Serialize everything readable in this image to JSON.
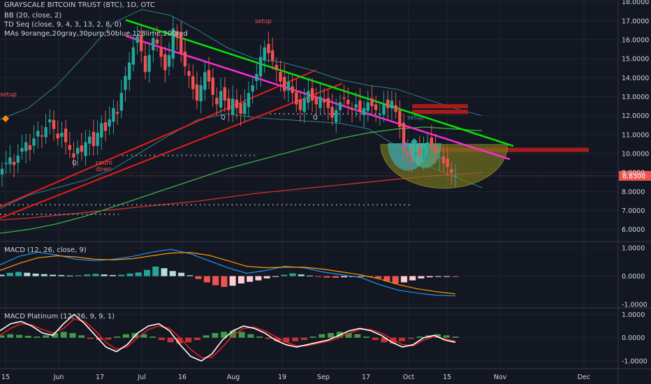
{
  "header": {
    "title": "GRAYSCALE BITCOIN TRUST (BTC), 1D, OTC",
    "indicators": [
      "BB (20, close, 2)",
      "TD Seq (close, 9, 4, 3, 13, 2, 8, 0)",
      "MAs 9orange,20gray,30purp,50blue,128lime,200red"
    ],
    "macd_title": "MACD (12, 26, close, 9)",
    "macd_platinum_title": "MACD Platinum (12, 26, 9, 9, 1)"
  },
  "chart_data": [
    {
      "type": "candlestick",
      "panel": "price",
      "y_ticks": [
        "6.0000",
        "7.0000",
        "8.0000",
        "9.0000",
        "10.0000",
        "11.0000",
        "12.0000",
        "13.0000",
        "14.0000",
        "15.0000",
        "16.0000",
        "17.0000",
        "18.0000"
      ],
      "ylim": [
        5.4,
        18.1
      ],
      "last_price_label": "8.8300",
      "x_ticks": [
        "15",
        "Jun",
        "17",
        "Jul",
        "16",
        "Aug",
        "19",
        "Sep",
        "17",
        "Oct",
        "15",
        "Nov",
        "Dec"
      ],
      "annotations": [
        "setup",
        "setup",
        "setup",
        "count down",
        "Q",
        "Q",
        "Q"
      ],
      "series": [
        {
          "name": "Close",
          "values": [
            9.2,
            9.5,
            9.8,
            9.4,
            9.9,
            10.3,
            10.6,
            10.2,
            10.8,
            11.2,
            10.9,
            11.4,
            11.8,
            11.3,
            10.8,
            11.1,
            10.6,
            10.2,
            9.8,
            10.3,
            10.1,
            10.6,
            10.9,
            10.4,
            11.1,
            11.6,
            11.2,
            11.8,
            12.4,
            12.1,
            13.2,
            14.1,
            14.8,
            15.6,
            16.2,
            15.4,
            14.3,
            15.2,
            16.1,
            15.8,
            15.1,
            14.4,
            15.2,
            16.6,
            16.1,
            15.3,
            14.6,
            14.1,
            13.4,
            12.8,
            13.6,
            14.3,
            13.8,
            13.1,
            12.6,
            13.3,
            12.8,
            12.3,
            12.9,
            12.4,
            12.1,
            12.7,
            13.2,
            13.6,
            14.2,
            15.1,
            15.6,
            15.3,
            14.9,
            14.4,
            13.8,
            13.3,
            13.8,
            13.2,
            12.6,
            12.3,
            12.9,
            13.3,
            12.8,
            12.6,
            13.0,
            12.7,
            12.4,
            11.9,
            12.3,
            12.7,
            12.9,
            12.6,
            12.3,
            12.6,
            12.2,
            12.4,
            12.7,
            12.5,
            12.3,
            12.1,
            12.6,
            12.4,
            12.8,
            12.2,
            11.4,
            10.2,
            9.9,
            9.6,
            10.1,
            9.9,
            10.3,
            10.6,
            10.4,
            10.0,
            9.8,
            9.5,
            9.3,
            9.0,
            8.83
          ]
        },
        {
          "name": "BB upper",
          "values": [
            11.8,
            12.4,
            13.6,
            15.2,
            16.9,
            17.6,
            17.3,
            16.5,
            15.6,
            15.0,
            14.8,
            14.4,
            13.9,
            13.6,
            13.4,
            12.9,
            12.4,
            12.0
          ]
        },
        {
          "name": "BB lower",
          "values": [
            7.1,
            7.8,
            8.2,
            8.6,
            9.2,
            10.1,
            11.0,
            11.8,
            12.1,
            11.9,
            11.8,
            11.7,
            11.6,
            11.3,
            10.4,
            9.4,
            8.8,
            8.2
          ]
        },
        {
          "name": "MA 200",
          "values": [
            6.5,
            6.6,
            6.75,
            6.9,
            7.05,
            7.2,
            7.35,
            7.5,
            7.7,
            7.9,
            8.05,
            8.2,
            8.35,
            8.5,
            8.65,
            8.8,
            8.9,
            9.0
          ]
        },
        {
          "name": "MA 128",
          "values": [
            5.8,
            6.0,
            6.3,
            6.7,
            7.2,
            7.7,
            8.2,
            8.7,
            9.2,
            9.6,
            10.0,
            10.4,
            10.8,
            11.1,
            11.3,
            11.4,
            11.3,
            11.2
          ]
        }
      ],
      "trendlines": [
        {
          "name": "green",
          "from": [
            "Jun 25",
            17.0
          ],
          "to": [
            "Nov 3",
            10.4
          ],
          "color": "#00e600"
        },
        {
          "name": "magenta",
          "from": [
            "Jun 25",
            16.2
          ],
          "to": [
            "Oct 28",
            9.7
          ],
          "color": "#ff2bd6"
        }
      ],
      "horizontal_zones": [
        12.5,
        12.2,
        10.2
      ],
      "dotted_levels": [
        7.3,
        6.8,
        9.9,
        12.1
      ]
    },
    {
      "type": "histogram",
      "panel": "macd",
      "y_ticks": [
        "1.0000",
        "0.0000",
        "-1.0000"
      ],
      "ylim": [
        -1.1,
        1.2
      ],
      "series": [
        {
          "name": "Histogram",
          "values": [
            0.05,
            0.12,
            0.15,
            0.12,
            0.09,
            0.07,
            0.05,
            0.04,
            0.02,
            0.03,
            0.06,
            0.08,
            0.06,
            0.04,
            0.05,
            0.09,
            0.13,
            0.22,
            0.34,
            0.28,
            0.18,
            0.12,
            0.03,
            -0.1,
            -0.22,
            -0.32,
            -0.38,
            -0.34,
            -0.26,
            -0.2,
            -0.15,
            -0.08,
            -0.02,
            0.05,
            0.1,
            0.06,
            0.02,
            -0.02,
            -0.05,
            -0.06,
            -0.04,
            -0.03,
            -0.02,
            -0.03,
            -0.08,
            -0.18,
            -0.26,
            -0.22,
            -0.15,
            -0.08,
            -0.04,
            -0.02,
            -0.01,
            -0.02
          ]
        },
        {
          "name": "MACD",
          "values": [
            0.4,
            0.7,
            0.85,
            0.75,
            0.6,
            0.55,
            0.6,
            0.7,
            0.85,
            0.95,
            0.8,
            0.55,
            0.3,
            0.1,
            0.2,
            0.35,
            0.3,
            0.15,
            0.05,
            -0.05,
            -0.3,
            -0.5,
            -0.6,
            -0.68,
            -0.7
          ]
        },
        {
          "name": "Signal",
          "values": [
            0.2,
            0.45,
            0.65,
            0.72,
            0.68,
            0.6,
            0.58,
            0.62,
            0.72,
            0.82,
            0.84,
            0.74,
            0.55,
            0.35,
            0.3,
            0.32,
            0.32,
            0.25,
            0.15,
            0.05,
            -0.1,
            -0.3,
            -0.45,
            -0.55,
            -0.63
          ]
        }
      ]
    },
    {
      "type": "histogram",
      "panel": "macd_platinum",
      "y_ticks": [
        "1.0000",
        "0.0000",
        "-1.0000"
      ],
      "ylim": [
        -1.3,
        1.25
      ],
      "series": [
        {
          "name": "Histogram",
          "values": [
            0.1,
            0.15,
            0.12,
            0.08,
            0.05,
            0.1,
            0.2,
            0.25,
            0.2,
            0.1,
            -0.05,
            -0.1,
            -0.08,
            0.05,
            0.15,
            0.2,
            0.15,
            0.05,
            -0.1,
            -0.2,
            -0.25,
            -0.2,
            -0.1,
            0.1,
            0.2,
            0.25,
            0.3,
            0.25,
            0.15,
            0.05,
            -0.05,
            -0.15,
            -0.2,
            -0.15,
            -0.1,
            0.05,
            0.15,
            0.2,
            0.25,
            0.2,
            0.15,
            0.05,
            -0.1,
            -0.2,
            -0.25,
            -0.15,
            -0.05,
            0.05,
            0.1,
            0.15,
            0.1,
            0.05
          ]
        },
        {
          "name": "MACD",
          "values": [
            0.3,
            0.6,
            0.7,
            0.5,
            0.2,
            0.1,
            0.6,
            1.0,
            0.6,
            0.1,
            -0.4,
            -0.6,
            -0.3,
            0.2,
            0.5,
            0.6,
            0.3,
            -0.3,
            -0.8,
            -1.0,
            -0.7,
            -0.1,
            0.3,
            0.5,
            0.4,
            0.2,
            -0.1,
            -0.3,
            -0.4,
            -0.3,
            -0.2,
            -0.1,
            0.1,
            0.3,
            0.4,
            0.3,
            0.1,
            -0.2,
            -0.4,
            -0.3,
            0.0,
            0.1,
            -0.1,
            -0.2
          ]
        },
        {
          "name": "Signal",
          "values": [
            0.1,
            0.4,
            0.6,
            0.55,
            0.35,
            0.2,
            0.4,
            0.8,
            0.7,
            0.3,
            -0.2,
            -0.5,
            -0.4,
            0.0,
            0.35,
            0.5,
            0.4,
            0.0,
            -0.5,
            -0.85,
            -0.85,
            -0.4,
            0.1,
            0.4,
            0.45,
            0.3,
            0.05,
            -0.2,
            -0.35,
            -0.35,
            -0.25,
            -0.15,
            0.0,
            0.2,
            0.35,
            0.35,
            0.2,
            -0.05,
            -0.3,
            -0.35,
            -0.1,
            0.05,
            -0.05,
            -0.15
          ]
        }
      ]
    }
  ]
}
